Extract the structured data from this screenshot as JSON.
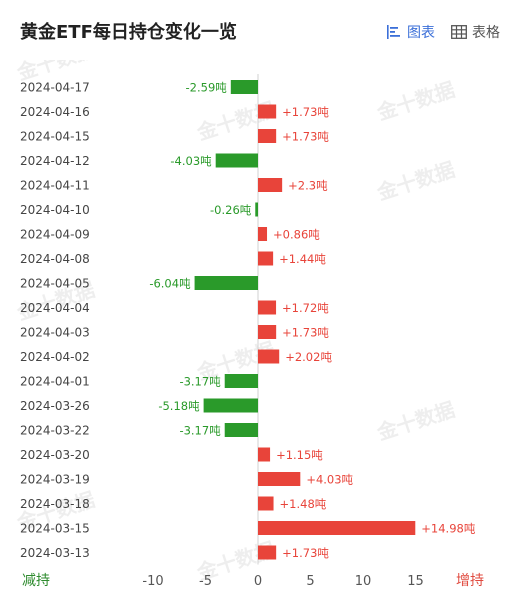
{
  "header": {
    "title": "黄金ETF每日持仓变化一览",
    "tab_chart": "图表",
    "tab_table": "表格"
  },
  "watermark": "金十数据",
  "legend": {
    "decrease": "减持",
    "increase": "增持"
  },
  "colors": {
    "increase": "#e8443a",
    "decrease": "#2a9a2a",
    "active_tab": "#3b6fd8"
  },
  "unit": "吨",
  "chart_data": {
    "type": "bar",
    "orientation": "horizontal",
    "categories": [
      "2024-04-17",
      "2024-04-16",
      "2024-04-15",
      "2024-04-12",
      "2024-04-11",
      "2024-04-10",
      "2024-04-09",
      "2024-04-08",
      "2024-04-05",
      "2024-04-04",
      "2024-04-03",
      "2024-04-02",
      "2024-04-01",
      "2024-03-26",
      "2024-03-22",
      "2024-03-20",
      "2024-03-19",
      "2024-03-18",
      "2024-03-15",
      "2024-03-13"
    ],
    "values": [
      -2.59,
      1.73,
      1.73,
      -4.03,
      2.3,
      -0.26,
      0.86,
      1.44,
      -6.04,
      1.72,
      1.73,
      2.02,
      -3.17,
      -5.18,
      -3.17,
      1.15,
      4.03,
      1.48,
      14.98,
      1.73
    ],
    "labels": [
      "-2.59吨",
      "+1.73吨",
      "+1.73吨",
      "-4.03吨",
      "+2.3吨",
      "-0.26吨",
      "+0.86吨",
      "+1.44吨",
      "-6.04吨",
      "+1.72吨",
      "+1.73吨",
      "+2.02吨",
      "-3.17吨",
      "-5.18吨",
      "-3.17吨",
      "+1.15吨",
      "+4.03吨",
      "+1.48吨",
      "+14.98吨",
      "+1.73吨"
    ],
    "xlim": [
      -10,
      15
    ],
    "xticks": [
      "-10",
      "-5",
      "0",
      "5",
      "10",
      "15"
    ],
    "xtick_values": [
      -10,
      -5,
      0,
      5,
      10,
      15
    ],
    "grid": false
  }
}
